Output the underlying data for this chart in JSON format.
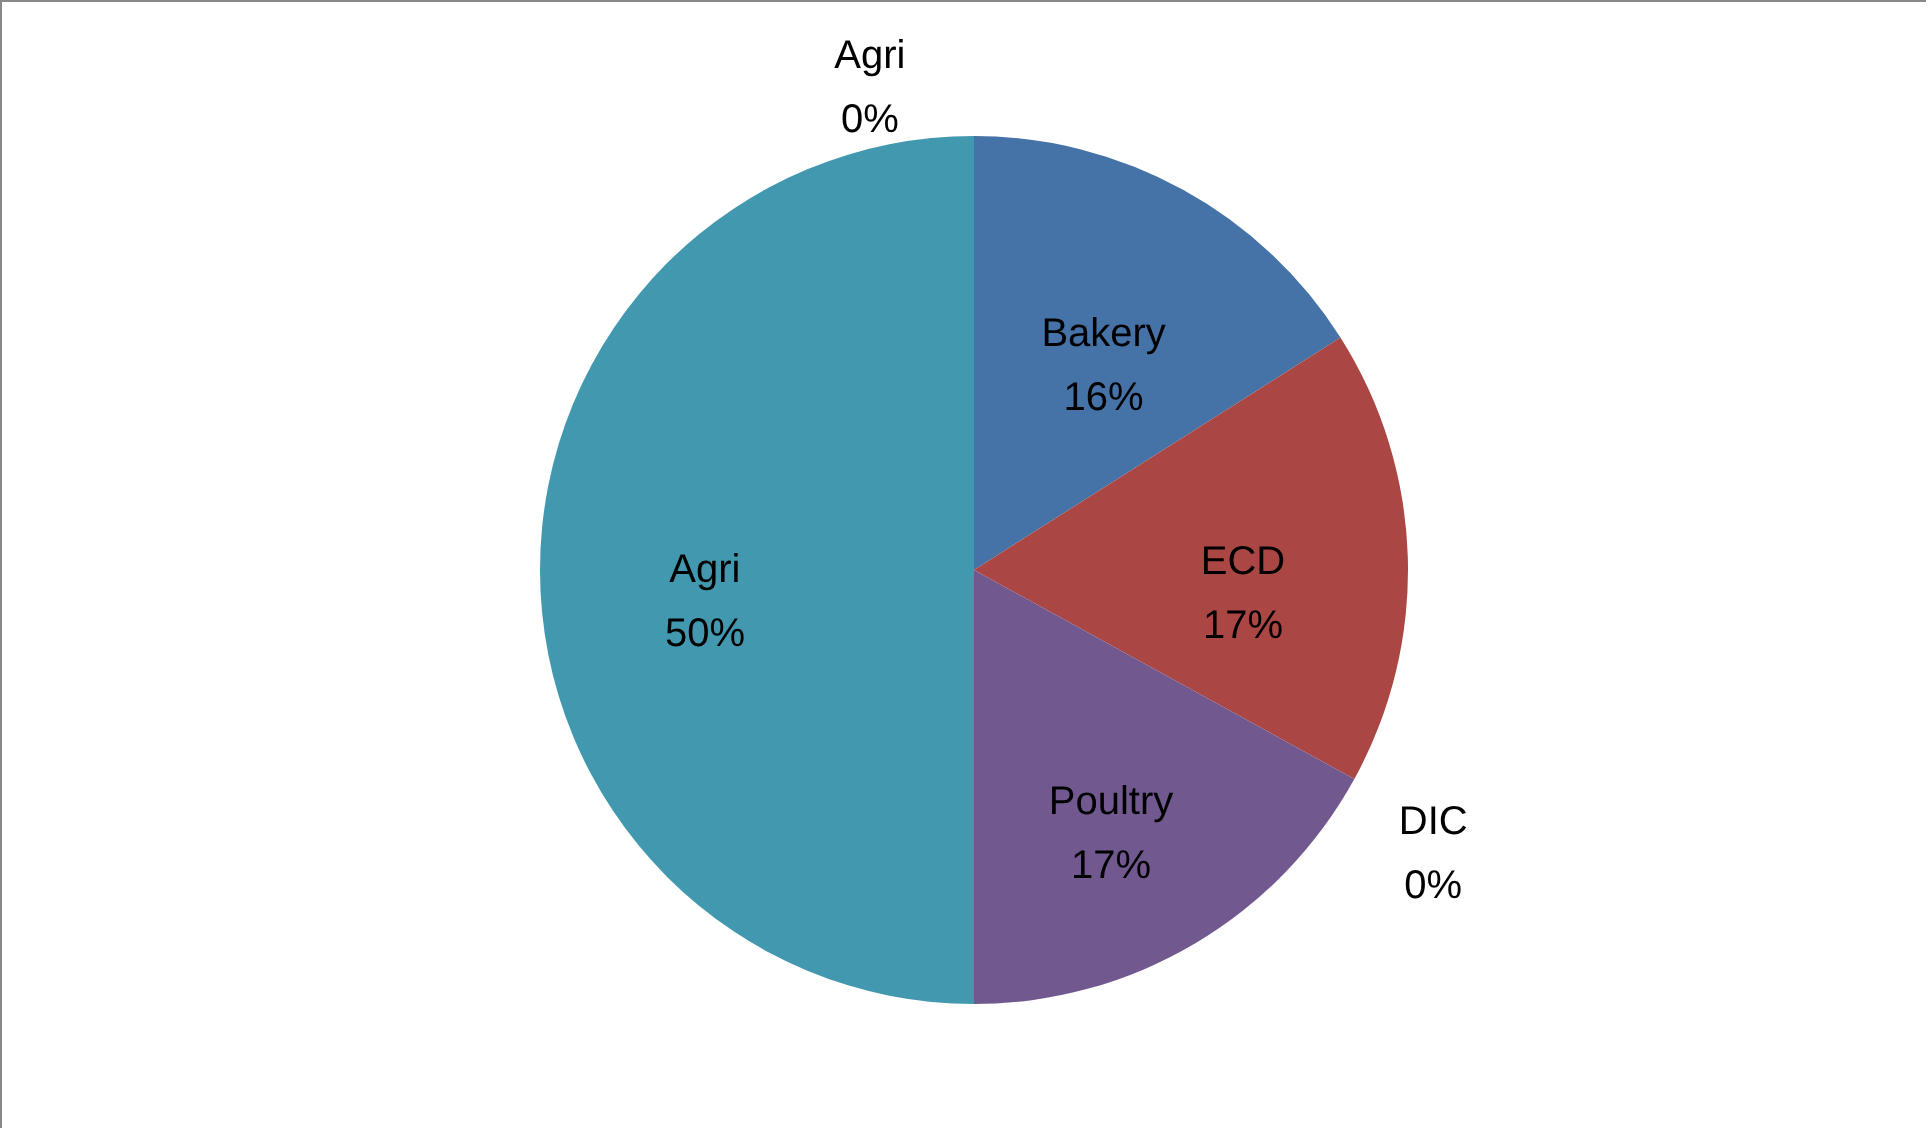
{
  "chart_data": {
    "type": "pie",
    "categories": [
      "Bakery",
      "ECD",
      "DIC",
      "Poultry",
      "Agri",
      "Agri"
    ],
    "values": [
      16,
      17,
      0,
      17,
      50,
      0
    ],
    "value_labels": [
      "16%",
      "17%",
      "0%",
      "17%",
      "50%",
      "0%"
    ],
    "colors": [
      "#4572a7",
      "#aa4643",
      "#89a54e",
      "#71588f",
      "#4198af",
      "#db843d"
    ]
  }
}
